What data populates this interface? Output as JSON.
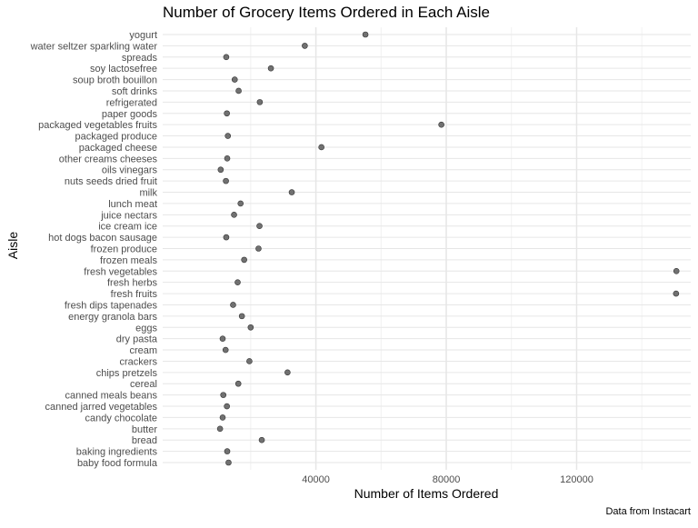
{
  "chart_data": {
    "type": "scatter",
    "title": "Number of Grocery Items Ordered in Each Aisle",
    "xlabel": "Number of Items Ordered",
    "ylabel": "Aisle",
    "caption": "Data from Instacart",
    "xlim": [
      -7000,
      155000
    ],
    "x_ticks": [
      40000,
      80000,
      120000
    ],
    "x_tick_labels": [
      "40000",
      "80000",
      "120000"
    ],
    "grid": true,
    "colors": {
      "point": "#595959",
      "point_stroke": "#333333",
      "grid_major": "#e6e6e6",
      "grid_minor": "#f2f2f2"
    },
    "categories": [
      "baby food formula",
      "baking ingredients",
      "bread",
      "butter",
      "candy chocolate",
      "canned jarred vegetables",
      "canned meals beans",
      "cereal",
      "chips pretzels",
      "crackers",
      "cream",
      "dry pasta",
      "eggs",
      "energy granola bars",
      "fresh dips tapenades",
      "fresh fruits",
      "fresh herbs",
      "fresh vegetables",
      "frozen meals",
      "frozen produce",
      "hot dogs bacon sausage",
      "ice cream ice",
      "juice nectars",
      "lunch meat",
      "milk",
      "nuts seeds dried fruit",
      "oils vinegars",
      "other creams cheeses",
      "packaged cheese",
      "packaged produce",
      "packaged vegetables fruits",
      "paper goods",
      "refrigerated",
      "soft drinks",
      "soup broth bouillon",
      "soy lactosefree",
      "spreads",
      "water seltzer sparkling water",
      "yogurt"
    ],
    "values": [
      13200,
      12800,
      23400,
      10600,
      11400,
      12700,
      11600,
      16200,
      31300,
      19600,
      12300,
      11400,
      20000,
      17300,
      14600,
      150500,
      16000,
      150600,
      18000,
      22400,
      12500,
      22700,
      14900,
      16900,
      32600,
      12400,
      10800,
      12800,
      41700,
      13000,
      78500,
      12700,
      22800,
      16300,
      15100,
      26200,
      12500,
      36600,
      55200
    ]
  }
}
